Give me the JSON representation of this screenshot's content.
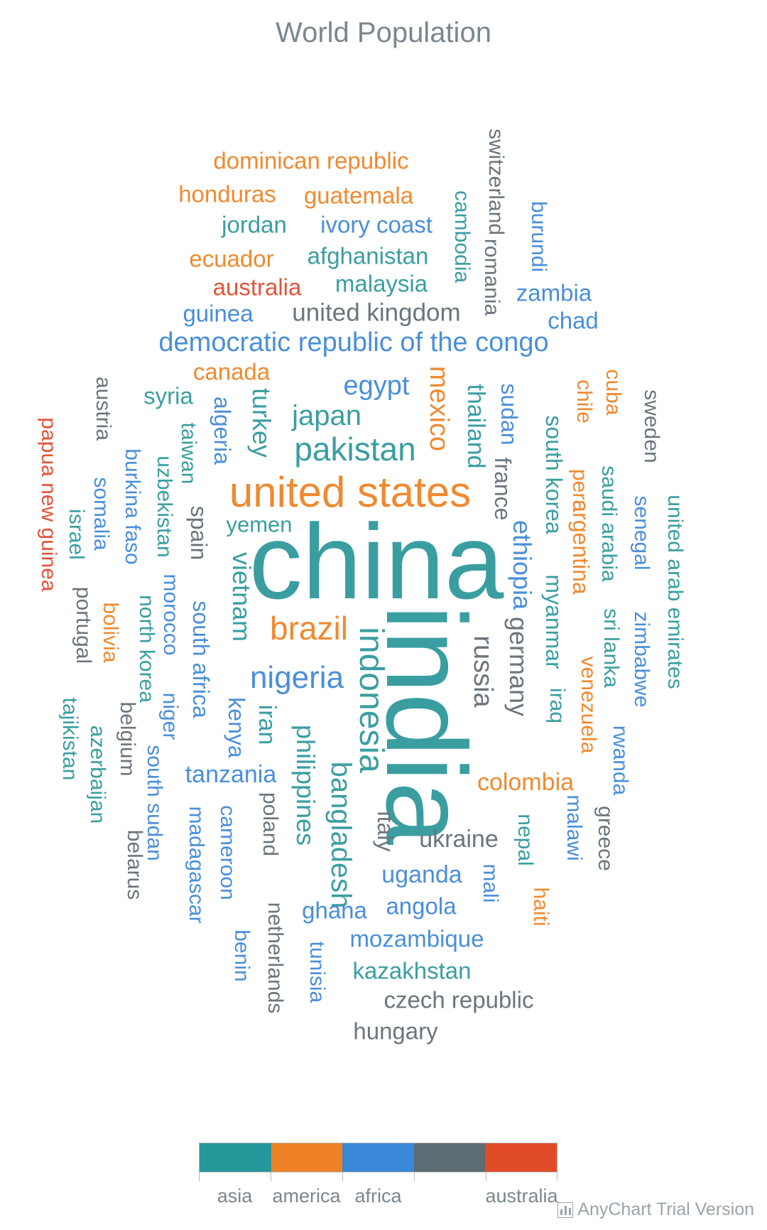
{
  "chart_data": {
    "type": "tagcloud",
    "title": "World Population",
    "colors": {
      "asia": "#3a9ea0",
      "america": "#ef8a30",
      "africa": "#4a8fd9",
      "europe": "#6b757d",
      "australia": "#e0543a"
    },
    "color_scale": {
      "segments": [
        "#24989b",
        "#ef8226",
        "#3a88d7",
        "#5d6b73",
        "#e04c28"
      ],
      "labels": [
        "asia",
        "america",
        "africa",
        "",
        "australia"
      ]
    },
    "words": [
      {
        "text": "china",
        "category": "asia"
      },
      {
        "text": "india",
        "category": "asia"
      },
      {
        "text": "united states",
        "category": "america"
      },
      {
        "text": "indonesia",
        "category": "asia"
      },
      {
        "text": "brazil",
        "category": "america"
      },
      {
        "text": "pakistan",
        "category": "asia"
      },
      {
        "text": "nigeria",
        "category": "africa"
      },
      {
        "text": "bangladesh",
        "category": "asia"
      },
      {
        "text": "russia",
        "category": "europe"
      },
      {
        "text": "japan",
        "category": "asia"
      },
      {
        "text": "mexico",
        "category": "america"
      },
      {
        "text": "philippines",
        "category": "asia"
      },
      {
        "text": "ethiopia",
        "category": "africa"
      },
      {
        "text": "vietnam",
        "category": "asia"
      },
      {
        "text": "egypt",
        "category": "africa"
      },
      {
        "text": "germany",
        "category": "europe"
      },
      {
        "text": "democratic republic of the congo",
        "category": "africa"
      },
      {
        "text": "iran",
        "category": "asia"
      },
      {
        "text": "turkey",
        "category": "asia"
      },
      {
        "text": "thailand",
        "category": "asia"
      },
      {
        "text": "united kingdom",
        "category": "europe"
      },
      {
        "text": "france",
        "category": "europe"
      },
      {
        "text": "italy",
        "category": "europe"
      },
      {
        "text": "tanzania",
        "category": "africa"
      },
      {
        "text": "south africa",
        "category": "africa"
      },
      {
        "text": "myanmar",
        "category": "asia"
      },
      {
        "text": "kenya",
        "category": "africa"
      },
      {
        "text": "south korea",
        "category": "asia"
      },
      {
        "text": "colombia",
        "category": "america"
      },
      {
        "text": "spain",
        "category": "europe"
      },
      {
        "text": "uganda",
        "category": "africa"
      },
      {
        "text": "argentina",
        "category": "america"
      },
      {
        "text": "algeria",
        "category": "africa"
      },
      {
        "text": "sudan",
        "category": "africa"
      },
      {
        "text": "ukraine",
        "category": "europe"
      },
      {
        "text": "iraq",
        "category": "asia"
      },
      {
        "text": "afghanistan",
        "category": "asia"
      },
      {
        "text": "poland",
        "category": "europe"
      },
      {
        "text": "canada",
        "category": "america"
      },
      {
        "text": "morocco",
        "category": "africa"
      },
      {
        "text": "saudi arabia",
        "category": "asia"
      },
      {
        "text": "uzbekistan",
        "category": "asia"
      },
      {
        "text": "peru",
        "category": "america"
      },
      {
        "text": "angola",
        "category": "africa"
      },
      {
        "text": "malaysia",
        "category": "asia"
      },
      {
        "text": "mozambique",
        "category": "africa"
      },
      {
        "text": "ghana",
        "category": "africa"
      },
      {
        "text": "yemen",
        "category": "asia"
      },
      {
        "text": "nepal",
        "category": "asia"
      },
      {
        "text": "venezuela",
        "category": "america"
      },
      {
        "text": "madagascar",
        "category": "africa"
      },
      {
        "text": "cameroon",
        "category": "africa"
      },
      {
        "text": "ivory coast",
        "category": "africa"
      },
      {
        "text": "north korea",
        "category": "asia"
      },
      {
        "text": "australia",
        "category": "australia"
      },
      {
        "text": "niger",
        "category": "africa"
      },
      {
        "text": "taiwan",
        "category": "asia"
      },
      {
        "text": "sri lanka",
        "category": "asia"
      },
      {
        "text": "burkina faso",
        "category": "africa"
      },
      {
        "text": "mali",
        "category": "africa"
      },
      {
        "text": "romania",
        "category": "europe"
      },
      {
        "text": "malawi",
        "category": "africa"
      },
      {
        "text": "chile",
        "category": "america"
      },
      {
        "text": "kazakhstan",
        "category": "asia"
      },
      {
        "text": "zambia",
        "category": "africa"
      },
      {
        "text": "guatemala",
        "category": "america"
      },
      {
        "text": "ecuador",
        "category": "america"
      },
      {
        "text": "syria",
        "category": "asia"
      },
      {
        "text": "netherlands",
        "category": "europe"
      },
      {
        "text": "senegal",
        "category": "africa"
      },
      {
        "text": "cambodia",
        "category": "asia"
      },
      {
        "text": "chad",
        "category": "africa"
      },
      {
        "text": "somalia",
        "category": "africa"
      },
      {
        "text": "zimbabwe",
        "category": "africa"
      },
      {
        "text": "guinea",
        "category": "africa"
      },
      {
        "text": "rwanda",
        "category": "africa"
      },
      {
        "text": "benin",
        "category": "africa"
      },
      {
        "text": "burundi",
        "category": "africa"
      },
      {
        "text": "tunisia",
        "category": "africa"
      },
      {
        "text": "bolivia",
        "category": "america"
      },
      {
        "text": "belgium",
        "category": "europe"
      },
      {
        "text": "haiti",
        "category": "america"
      },
      {
        "text": "cuba",
        "category": "america"
      },
      {
        "text": "south sudan",
        "category": "africa"
      },
      {
        "text": "dominican republic",
        "category": "america"
      },
      {
        "text": "czech republic",
        "category": "europe"
      },
      {
        "text": "greece",
        "category": "europe"
      },
      {
        "text": "jordan",
        "category": "asia"
      },
      {
        "text": "portugal",
        "category": "europe"
      },
      {
        "text": "azerbaijan",
        "category": "asia"
      },
      {
        "text": "sweden",
        "category": "europe"
      },
      {
        "text": "honduras",
        "category": "america"
      },
      {
        "text": "united arab emirates",
        "category": "asia"
      },
      {
        "text": "hungary",
        "category": "europe"
      },
      {
        "text": "tajikistan",
        "category": "asia"
      },
      {
        "text": "belarus",
        "category": "europe"
      },
      {
        "text": "austria",
        "category": "europe"
      },
      {
        "text": "papua new guinea",
        "category": "australia"
      },
      {
        "text": "switzerland",
        "category": "europe"
      },
      {
        "text": "israel",
        "category": "asia"
      }
    ]
  },
  "credits": {
    "text": "AnyChart Trial Version"
  }
}
